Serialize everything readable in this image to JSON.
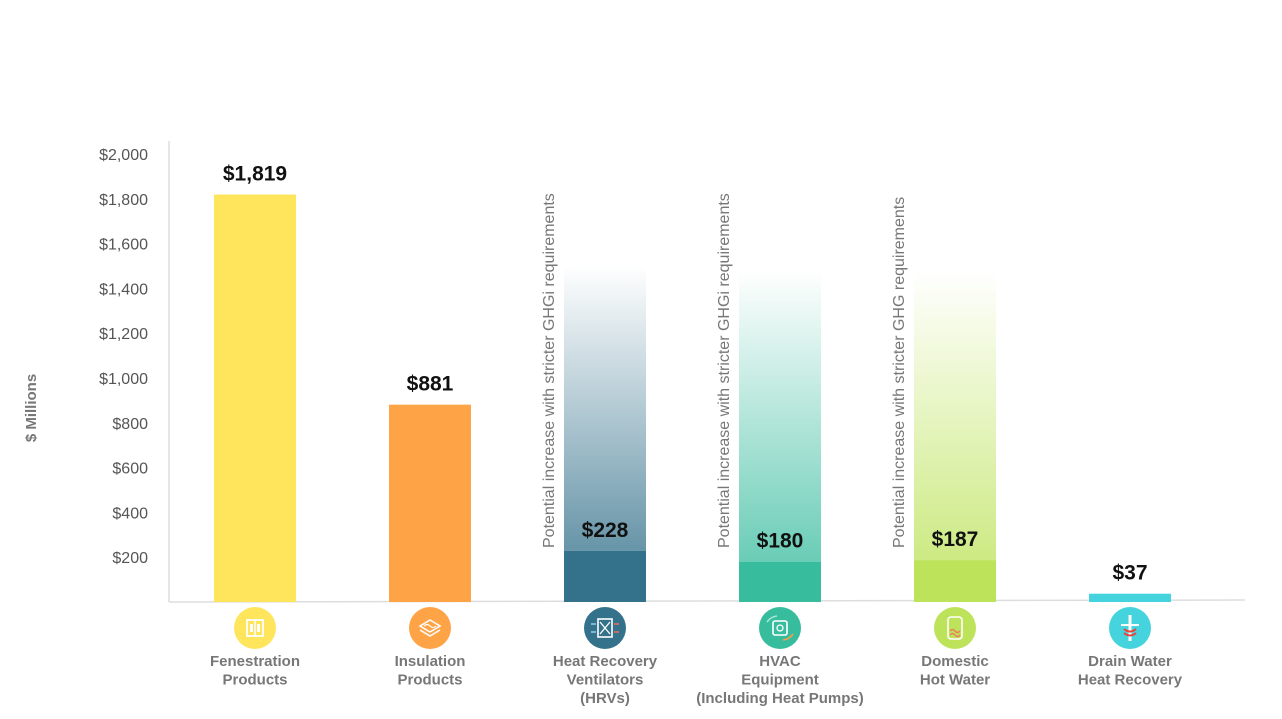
{
  "chart_data": {
    "type": "bar",
    "ylabel": "$ Millions",
    "ylim": [
      0,
      2000
    ],
    "yticks": [
      {
        "value": 200,
        "label": "$200"
      },
      {
        "value": 400,
        "label": "$400"
      },
      {
        "value": 600,
        "label": "$600"
      },
      {
        "value": 800,
        "label": "$800"
      },
      {
        "value": 1000,
        "label": "$1,000"
      },
      {
        "value": 1200,
        "label": "$1,200"
      },
      {
        "value": 1400,
        "label": "$1,400"
      },
      {
        "value": 1600,
        "label": "$1,600"
      },
      {
        "value": 1800,
        "label": "$1,800"
      },
      {
        "value": 2000,
        "label": "$2,000"
      }
    ],
    "grid": false,
    "bars": [
      {
        "category": [
          "Fenestration",
          "Products"
        ],
        "value": 1819,
        "value_label": "$1,819",
        "color": "#FFE55C",
        "icon": "window-icon",
        "icon_color": "#FFE55C"
      },
      {
        "category": [
          "Insulation",
          "Products"
        ],
        "value": 881,
        "value_label": "$881",
        "color": "#FFA347",
        "icon": "insulation-layers-icon",
        "icon_color": "#FFA347"
      },
      {
        "category": [
          "Heat Recovery",
          "Ventilators",
          "(HRVs)"
        ],
        "value": 228,
        "value_label": "$228",
        "color": "#34718B",
        "icon": "hrv-unit-icon",
        "icon_color": "#34718B",
        "potential": {
          "top": 1500,
          "color": "#34718B",
          "note": "Potential increase with stricter GHGi requirements"
        }
      },
      {
        "category": [
          "HVAC",
          "Equipment",
          "(Including Heat Pumps)"
        ],
        "value": 180,
        "value_label": "$180",
        "color": "#38BC9E",
        "icon": "heat-pump-icon",
        "icon_color": "#38BC9E",
        "potential": {
          "top": 1480,
          "color": "#38BC9E",
          "note": "Potential increase with stricter GHGi requirements"
        }
      },
      {
        "category": [
          "Domestic",
          "Hot Water"
        ],
        "value": 187,
        "value_label": "$187",
        "color": "#BCE35A",
        "icon": "water-heater-icon",
        "icon_color": "#BCE35A",
        "potential": {
          "top": 1480,
          "color": "#BCE35A",
          "note": "Potential increase with stricter GHG requirements"
        }
      },
      {
        "category": [
          "Drain Water",
          "Heat Recovery"
        ],
        "value": 37,
        "value_label": "$37",
        "color": "#45D3DE",
        "icon": "drain-pipe-icon",
        "icon_color": "#45D3DE"
      }
    ]
  }
}
